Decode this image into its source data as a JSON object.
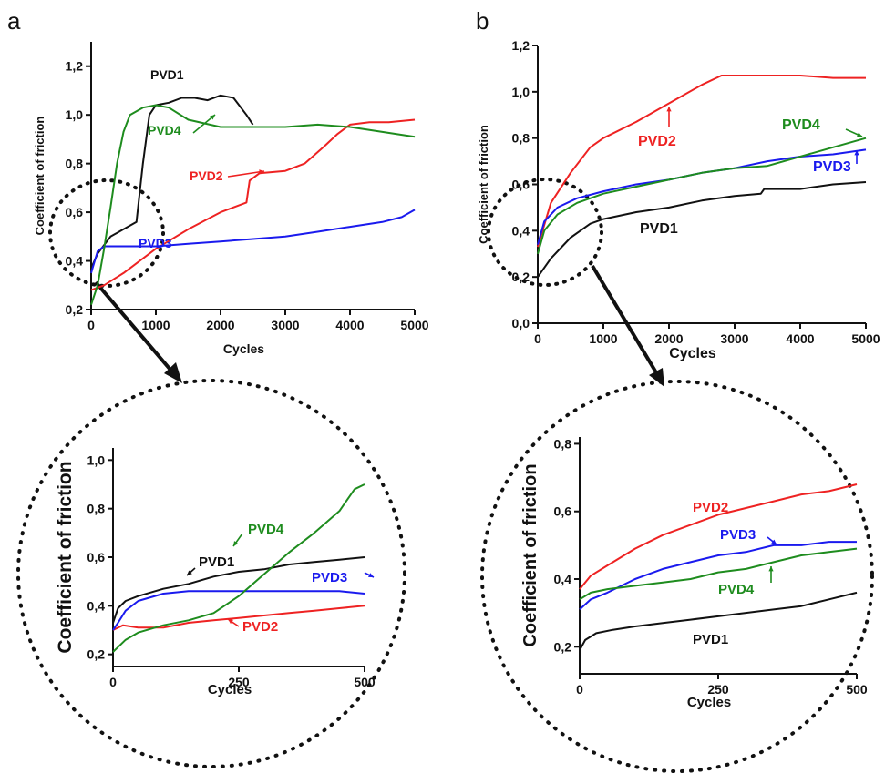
{
  "panels": [
    {
      "letter": "a"
    },
    {
      "letter": "b"
    }
  ],
  "colors": {
    "PVD1": "#111111",
    "PVD2": "#ee2222",
    "PVD3": "#1a1aee",
    "PVD4": "#1e8c1e"
  },
  "chart_data": [
    {
      "id": "a_main",
      "type": "line",
      "xlabel": "Cycles",
      "ylabel": "Coefficient of friction",
      "xlim": [
        0,
        5000
      ],
      "ylim": [
        0.2,
        1.3
      ],
      "xticks": [
        0,
        1000,
        2000,
        3000,
        4000,
        5000
      ],
      "xtick_labels": [
        "0",
        "1000",
        "2000",
        "3000",
        "4000",
        "5000"
      ],
      "yticks": [
        0.2,
        0.4,
        0.6,
        0.8,
        1.0,
        1.2
      ],
      "ytick_labels": [
        "0,2",
        "0,4",
        "0,6",
        "0,8",
        "1,0",
        "1,2"
      ],
      "series": [
        {
          "name": "PVD1",
          "label": "PVD1",
          "x": [
            0,
            100,
            300,
            500,
            700,
            800,
            900,
            1000,
            1200,
            1400,
            1600,
            1800,
            2000,
            2200,
            2400,
            2500
          ],
          "y": [
            0.37,
            0.43,
            0.5,
            0.53,
            0.56,
            0.8,
            1.0,
            1.04,
            1.05,
            1.07,
            1.07,
            1.06,
            1.08,
            1.07,
            1.0,
            0.96
          ]
        },
        {
          "name": "PVD2",
          "label": "PVD2",
          "x": [
            0,
            200,
            500,
            1000,
            1500,
            2000,
            2400,
            2450,
            2600,
            3000,
            3300,
            3600,
            3800,
            4000,
            4300,
            4600,
            5000
          ],
          "y": [
            0.28,
            0.3,
            0.35,
            0.45,
            0.53,
            0.6,
            0.64,
            0.73,
            0.76,
            0.77,
            0.8,
            0.87,
            0.92,
            0.96,
            0.97,
            0.97,
            0.98
          ]
        },
        {
          "name": "PVD3",
          "label": "PVD3",
          "x": [
            0,
            100,
            200,
            500,
            1000,
            1500,
            2000,
            2500,
            3000,
            3500,
            4000,
            4500,
            4800,
            5000
          ],
          "y": [
            0.35,
            0.44,
            0.46,
            0.46,
            0.46,
            0.47,
            0.48,
            0.49,
            0.5,
            0.52,
            0.54,
            0.56,
            0.58,
            0.61
          ]
        },
        {
          "name": "PVD4",
          "label": "PVD4",
          "x": [
            0,
            100,
            200,
            300,
            400,
            500,
            600,
            800,
            1000,
            1200,
            1500,
            2000,
            2500,
            3000,
            3500,
            4000,
            4500,
            5000
          ],
          "y": [
            0.22,
            0.3,
            0.45,
            0.62,
            0.8,
            0.93,
            1.0,
            1.03,
            1.04,
            1.03,
            0.98,
            0.95,
            0.95,
            0.95,
            0.96,
            0.95,
            0.93,
            0.91
          ]
        }
      ]
    },
    {
      "id": "a_zoom",
      "type": "line",
      "xlabel": "Cycles",
      "ylabel": "Coefficient of friction",
      "xlim": [
        0,
        500
      ],
      "ylim": [
        0.15,
        1.05
      ],
      "xticks": [
        0,
        250,
        500
      ],
      "xtick_labels": [
        "0",
        "250",
        "500"
      ],
      "yticks": [
        0.2,
        0.4,
        0.6,
        0.8,
        1.0
      ],
      "ytick_labels": [
        "0,2",
        "0,4",
        "0,6",
        "0,8",
        "1,0"
      ],
      "series": [
        {
          "name": "PVD1",
          "label": "PVD1",
          "x": [
            0,
            10,
            25,
            50,
            100,
            150,
            200,
            250,
            300,
            350,
            400,
            450,
            500
          ],
          "y": [
            0.33,
            0.39,
            0.42,
            0.44,
            0.47,
            0.49,
            0.52,
            0.54,
            0.55,
            0.57,
            0.58,
            0.59,
            0.6
          ]
        },
        {
          "name": "PVD2",
          "label": "PVD2",
          "x": [
            0,
            20,
            50,
            100,
            150,
            200,
            250,
            300,
            350,
            400,
            450,
            500
          ],
          "y": [
            0.3,
            0.32,
            0.31,
            0.31,
            0.33,
            0.34,
            0.35,
            0.36,
            0.37,
            0.38,
            0.39,
            0.4
          ]
        },
        {
          "name": "PVD3",
          "label": "PVD3",
          "x": [
            0,
            10,
            25,
            50,
            100,
            150,
            200,
            250,
            300,
            350,
            400,
            450,
            500
          ],
          "y": [
            0.3,
            0.33,
            0.38,
            0.42,
            0.45,
            0.46,
            0.46,
            0.46,
            0.46,
            0.46,
            0.46,
            0.46,
            0.45
          ]
        },
        {
          "name": "PVD4",
          "label": "PVD4",
          "x": [
            0,
            10,
            25,
            50,
            100,
            150,
            200,
            250,
            300,
            350,
            400,
            450,
            480,
            500
          ],
          "y": [
            0.21,
            0.23,
            0.26,
            0.29,
            0.32,
            0.34,
            0.37,
            0.44,
            0.53,
            0.62,
            0.7,
            0.79,
            0.88,
            0.9
          ]
        }
      ]
    },
    {
      "id": "b_main",
      "type": "line",
      "xlabel": "Cycles",
      "ylabel": "Coefficient of friction",
      "xlim": [
        0,
        5000
      ],
      "ylim": [
        0.0,
        1.2
      ],
      "xticks": [
        0,
        1000,
        2000,
        3000,
        4000,
        5000
      ],
      "xtick_labels": [
        "0",
        "1000",
        "2000",
        "3000",
        "4000",
        "5000"
      ],
      "yticks": [
        0.0,
        0.2,
        0.4,
        0.6,
        0.8,
        1.0,
        1.2
      ],
      "ytick_labels": [
        "0,0",
        "0,2",
        "0,4",
        "0,6",
        "0,8",
        "1,0",
        "1,2"
      ],
      "series": [
        {
          "name": "PVD1",
          "label": "PVD1",
          "x": [
            0,
            200,
            500,
            800,
            1000,
            1500,
            2000,
            2500,
            3000,
            3400,
            3450,
            4000,
            4500,
            5000
          ],
          "y": [
            0.2,
            0.28,
            0.37,
            0.43,
            0.45,
            0.48,
            0.5,
            0.53,
            0.55,
            0.56,
            0.58,
            0.58,
            0.6,
            0.61
          ]
        },
        {
          "name": "PVD2",
          "label": "PVD2",
          "x": [
            0,
            200,
            500,
            800,
            1000,
            1500,
            2000,
            2500,
            2800,
            3000,
            3500,
            4000,
            4500,
            5000
          ],
          "y": [
            0.33,
            0.52,
            0.65,
            0.76,
            0.8,
            0.87,
            0.95,
            1.03,
            1.07,
            1.07,
            1.07,
            1.07,
            1.06,
            1.06
          ]
        },
        {
          "name": "PVD3",
          "label": "PVD3",
          "x": [
            0,
            100,
            300,
            600,
            1000,
            1500,
            2000,
            2500,
            3000,
            3500,
            4000,
            4500,
            5000
          ],
          "y": [
            0.34,
            0.44,
            0.5,
            0.54,
            0.57,
            0.6,
            0.62,
            0.65,
            0.67,
            0.7,
            0.72,
            0.73,
            0.75
          ]
        },
        {
          "name": "PVD4",
          "label": "PVD4",
          "x": [
            0,
            100,
            300,
            600,
            1000,
            1500,
            2000,
            2500,
            3000,
            3500,
            4000,
            4500,
            5000
          ],
          "y": [
            0.3,
            0.4,
            0.47,
            0.52,
            0.56,
            0.59,
            0.62,
            0.65,
            0.67,
            0.68,
            0.72,
            0.76,
            0.8
          ]
        }
      ]
    },
    {
      "id": "b_zoom",
      "type": "line",
      "xlabel": "Cycles",
      "ylabel": "Coefficient of friction",
      "xlim": [
        0,
        500
      ],
      "ylim": [
        0.12,
        0.82
      ],
      "xticks": [
        0,
        250,
        500
      ],
      "xtick_labels": [
        "0",
        "250",
        "500"
      ],
      "yticks": [
        0.2,
        0.4,
        0.6,
        0.8
      ],
      "ytick_labels": [
        "0,2",
        "0,4",
        "0,6",
        "0,8"
      ],
      "series": [
        {
          "name": "PVD1",
          "label": "PVD1",
          "x": [
            0,
            10,
            30,
            60,
            100,
            150,
            200,
            250,
            300,
            350,
            400,
            450,
            500
          ],
          "y": [
            0.19,
            0.22,
            0.24,
            0.25,
            0.26,
            0.27,
            0.28,
            0.29,
            0.3,
            0.31,
            0.32,
            0.34,
            0.36
          ]
        },
        {
          "name": "PVD2",
          "label": "PVD2",
          "x": [
            0,
            20,
            50,
            100,
            150,
            200,
            250,
            300,
            350,
            400,
            450,
            500
          ],
          "y": [
            0.37,
            0.41,
            0.44,
            0.49,
            0.53,
            0.56,
            0.59,
            0.61,
            0.63,
            0.65,
            0.66,
            0.68
          ]
        },
        {
          "name": "PVD3",
          "label": "PVD3",
          "x": [
            0,
            20,
            50,
            100,
            150,
            200,
            250,
            300,
            350,
            400,
            450,
            500
          ],
          "y": [
            0.31,
            0.34,
            0.36,
            0.4,
            0.43,
            0.45,
            0.47,
            0.48,
            0.5,
            0.5,
            0.51,
            0.51
          ]
        },
        {
          "name": "PVD4",
          "label": "PVD4",
          "x": [
            0,
            20,
            50,
            100,
            150,
            200,
            250,
            300,
            350,
            400,
            450,
            500
          ],
          "y": [
            0.34,
            0.36,
            0.37,
            0.38,
            0.39,
            0.4,
            0.42,
            0.43,
            0.45,
            0.47,
            0.48,
            0.49
          ]
        }
      ]
    }
  ]
}
